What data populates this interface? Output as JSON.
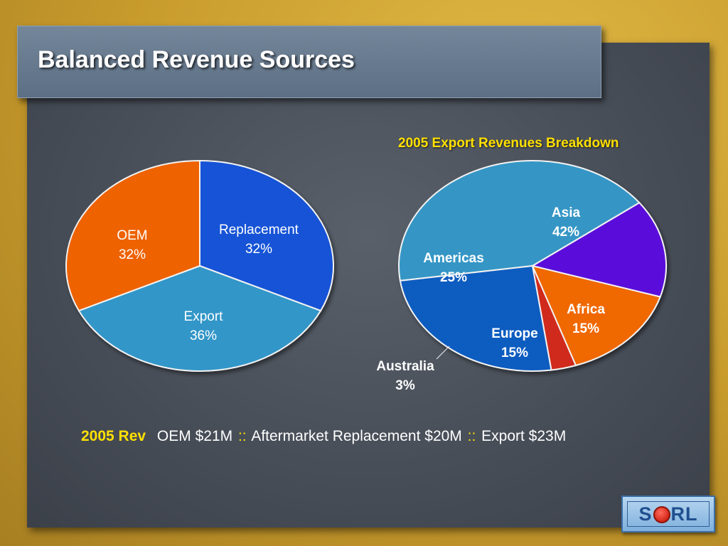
{
  "slide": {
    "title": "Balanced Revenue Sources"
  },
  "chart_data": [
    {
      "type": "pie",
      "title": "",
      "slices": [
        {
          "name": "Replacement",
          "value": 32,
          "label": "32%",
          "color": "#1452d6"
        },
        {
          "name": "Export",
          "value": 36,
          "label": "36%",
          "color": "#3396c8"
        },
        {
          "name": "OEM",
          "value": 32,
          "label": "32%",
          "color": "#ee6200"
        }
      ]
    },
    {
      "type": "pie",
      "title": "2005 Export Revenues Breakdown",
      "slices": [
        {
          "name": "Asia",
          "value": 42,
          "label": "42%",
          "color": "#3696c5"
        },
        {
          "name": "Africa",
          "value": 15,
          "label": "15%",
          "color": "#5a10da"
        },
        {
          "name": "Europe",
          "value": 15,
          "label": "15%",
          "color": "#f06800"
        },
        {
          "name": "Australia",
          "value": 3,
          "label": "3%",
          "color": "#d02a1a"
        },
        {
          "name": "Americas",
          "value": 25,
          "label": "25%",
          "color": "#0e5cc0"
        }
      ]
    }
  ],
  "revenue_line": {
    "label": "2005 Rev",
    "oem": "OEM $21M",
    "sep1": "::",
    "replacement": "Aftermarket Replacement $20M",
    "sep2": "::",
    "export": "Export $23M"
  },
  "logo": {
    "text_before": "S",
    "text_after": "RL"
  }
}
